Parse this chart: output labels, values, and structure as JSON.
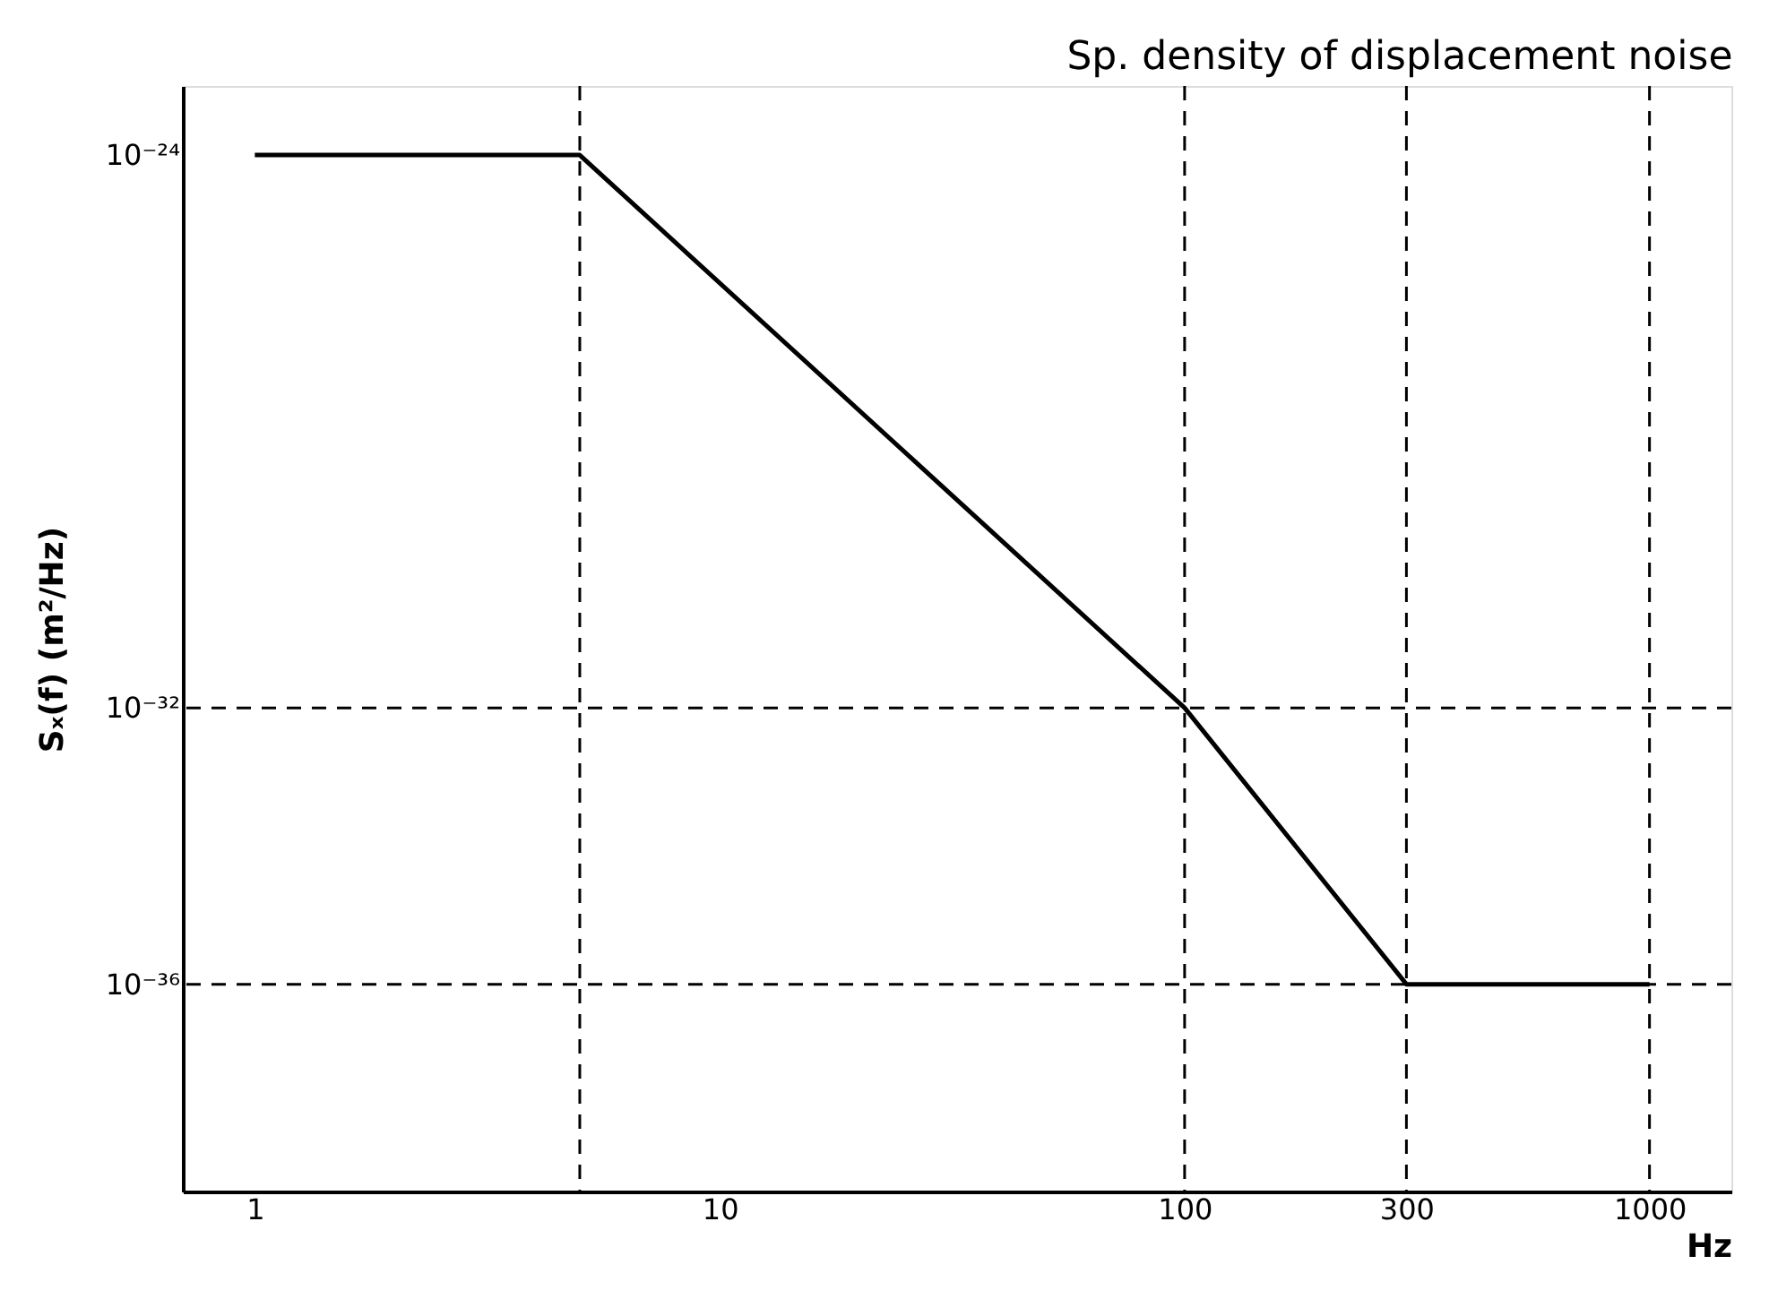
{
  "chart_data": {
    "type": "line",
    "title": "Sp. density of displacement noise",
    "xlabel": "Hz",
    "ylabel": "Sₓ(f)   (m²/Hz)",
    "x": [
      1,
      5,
      100,
      300,
      1000
    ],
    "series": [
      {
        "color": "#000000",
        "values": [
          1e-24,
          1e-24,
          1e-32,
          1e-36,
          1e-36
        ]
      }
    ],
    "log": "xy",
    "xlim": [
      0.7,
      1500
    ],
    "xticks": [
      1,
      10,
      100,
      300,
      1000
    ],
    "ylim": [
      1e-39,
      1e-23
    ],
    "yticks": [
      {
        "value": 1e-24,
        "label": "10⁻²⁴"
      },
      {
        "value": 1e-32,
        "label": "10⁻³²"
      },
      {
        "value": 1e-36,
        "label": "10⁻³⁶"
      }
    ],
    "ref_lines": [
      {
        "axis": "y",
        "value": 1e-32,
        "line_style": "dashed"
      },
      {
        "axis": "y",
        "value": 1e-36,
        "line_style": "dashed"
      },
      {
        "axis": "x",
        "value": 5,
        "line_style": "dashed"
      },
      {
        "axis": "x",
        "value": 100,
        "line_style": "dashed"
      },
      {
        "axis": "x",
        "value": 300,
        "line_style": "dashed"
      },
      {
        "axis": "x",
        "value": 1000,
        "line_style": "dashed"
      }
    ],
    "grid": false,
    "marker": "none",
    "line_style": "solid"
  }
}
